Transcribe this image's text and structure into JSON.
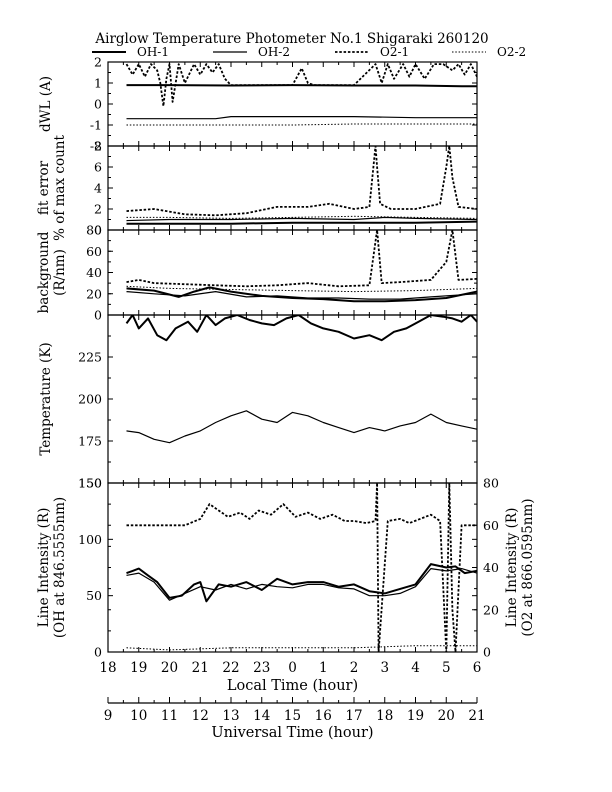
{
  "title": "Airglow Temperature Photometer No.1  Shigaraki  260120",
  "legend": [
    {
      "name": "OH-1",
      "style": "solid-thick"
    },
    {
      "name": "OH-2",
      "style": "solid-thin"
    },
    {
      "name": "O2-1",
      "style": "dotted-thick"
    },
    {
      "name": "O2-2",
      "style": "dotted-thin"
    }
  ],
  "chart_data": [
    {
      "id": "dwl",
      "type": "line",
      "ylabel": "dWL (A)",
      "ylim": [
        -2,
        2
      ],
      "yticks": [
        "2",
        "1",
        "0",
        "-1",
        "-2"
      ],
      "series": [
        {
          "name": "OH-1",
          "x": [
            18.6,
            20,
            22,
            24,
            26,
            28,
            29.5,
            30
          ],
          "y": [
            0.9,
            0.9,
            0.88,
            0.9,
            0.88,
            0.88,
            0.85,
            0.85
          ]
        },
        {
          "name": "OH-2",
          "x": [
            18.6,
            20,
            21.5,
            22,
            24,
            26,
            28,
            30
          ],
          "y": [
            -0.7,
            -0.7,
            -0.7,
            -0.6,
            -0.6,
            -0.6,
            -0.65,
            -0.65
          ]
        },
        {
          "name": "O2-1",
          "x": [
            18.6,
            18.8,
            19,
            19.2,
            19.4,
            19.6,
            19.7,
            19.8,
            19.9,
            20,
            20.1,
            20.3,
            20.5,
            20.8,
            21,
            21.2,
            21.4,
            21.6,
            21.8,
            22,
            23,
            24,
            24.3,
            24.5,
            24.7,
            25,
            26,
            26.7,
            26.9,
            27.1,
            27.3,
            27.6,
            27.8,
            28,
            28.3,
            28.6,
            28.9,
            29.2,
            29.4,
            29.6,
            29.8,
            30
          ],
          "y": [
            1.9,
            1.4,
            1.9,
            1.3,
            1.9,
            1.6,
            1.0,
            -0.1,
            1.2,
            1.9,
            0.1,
            1.9,
            1.0,
            1.9,
            1.4,
            1.9,
            1.5,
            1.9,
            1.2,
            0.9,
            0.9,
            0.9,
            1.7,
            1.0,
            0.9,
            0.9,
            0.9,
            1.9,
            1.0,
            1.9,
            1.2,
            1.9,
            1.3,
            1.9,
            1.2,
            1.9,
            1.9,
            1.6,
            1.9,
            1.4,
            1.9,
            1.3
          ]
        },
        {
          "name": "O2-2",
          "x": [
            18.6,
            20,
            22,
            24,
            26,
            28,
            30
          ],
          "y": [
            -1.0,
            -1.0,
            -1.0,
            -1.0,
            -0.95,
            -0.95,
            -0.95
          ]
        }
      ]
    },
    {
      "id": "fit",
      "type": "line",
      "ylabel": "fit error\n% of max count",
      "ylim": [
        0,
        8
      ],
      "yticks": [
        "8",
        "6",
        "4",
        "2",
        "0"
      ],
      "series": [
        {
          "name": "OH-1",
          "x": [
            18.6,
            20,
            22,
            24,
            26,
            28,
            30
          ],
          "y": [
            0.6,
            0.6,
            0.6,
            0.7,
            0.7,
            0.7,
            0.8
          ]
        },
        {
          "name": "OH-2",
          "x": [
            18.6,
            20,
            22,
            24,
            26,
            27,
            28,
            30
          ],
          "y": [
            0.9,
            1.0,
            1.0,
            1.1,
            1.0,
            1.2,
            1.1,
            1.0
          ]
        },
        {
          "name": "O2-1",
          "x": [
            18.6,
            19.5,
            20.5,
            21.5,
            22.5,
            23.5,
            24.5,
            25.2,
            25.5,
            26,
            26.5,
            26.7,
            26.75,
            26.85,
            27.2,
            28,
            28.8,
            29.0,
            29.1,
            29.2,
            29.4,
            30
          ],
          "y": [
            1.8,
            2.0,
            1.5,
            1.4,
            1.6,
            2.2,
            2.2,
            2.5,
            2.3,
            2.0,
            2.2,
            8.0,
            6.0,
            2.5,
            2.0,
            2.0,
            2.5,
            6.0,
            8.0,
            5.0,
            2.2,
            2.0
          ]
        },
        {
          "name": "O2-2",
          "x": [
            18.6,
            20,
            22,
            24,
            26,
            28,
            30
          ],
          "y": [
            1.2,
            1.2,
            1.1,
            1.2,
            1.3,
            1.2,
            1.1
          ]
        }
      ]
    },
    {
      "id": "bg",
      "type": "line",
      "ylabel": "background\n(R/nm)",
      "ylim": [
        0,
        80
      ],
      "yticks": [
        "80",
        "60",
        "40",
        "20",
        "0"
      ],
      "series": [
        {
          "name": "OH-1",
          "x": [
            18.6,
            19.5,
            20.3,
            20.8,
            21.3,
            22,
            23,
            24,
            25,
            26,
            27,
            28,
            29,
            30
          ],
          "y": [
            25,
            23,
            17,
            22,
            26,
            22,
            18,
            16,
            15,
            13,
            13,
            14,
            16,
            22
          ]
        },
        {
          "name": "OH-2",
          "x": [
            18.6,
            19.5,
            20.5,
            21.5,
            22.5,
            23.5,
            24.5,
            25.5,
            26.5,
            27.5,
            28.5,
            29.5,
            30
          ],
          "y": [
            22,
            20,
            18,
            22,
            17,
            18,
            16,
            16,
            15,
            15,
            17,
            19,
            20
          ]
        },
        {
          "name": "O2-1",
          "x": [
            18.6,
            19,
            19.5,
            20.5,
            21.5,
            22.5,
            23.5,
            24.5,
            25.5,
            26.5,
            26.75,
            26.9,
            27.5,
            28.5,
            29,
            29.2,
            29.4,
            30
          ],
          "y": [
            31,
            33,
            30,
            29,
            28,
            27,
            28,
            30,
            27,
            28,
            80,
            30,
            31,
            33,
            50,
            80,
            33,
            34
          ]
        },
        {
          "name": "O2-2",
          "x": [
            18.6,
            20,
            22,
            24,
            26,
            28,
            30
          ],
          "y": [
            27,
            25,
            24,
            23,
            22,
            23,
            25
          ]
        }
      ]
    },
    {
      "id": "temp",
      "type": "line",
      "ylabel": "Temperature (K)",
      "ylim": [
        150,
        250
      ],
      "yticks": [
        "225",
        "200",
        "175",
        "150"
      ],
      "series": [
        {
          "name": "OH-1",
          "x": [
            18.6,
            18.8,
            19.0,
            19.3,
            19.6,
            19.9,
            20.2,
            20.6,
            20.9,
            21.2,
            21.5,
            21.8,
            22.2,
            22.6,
            23.0,
            23.4,
            23.8,
            24.2,
            24.6,
            25.0,
            25.5,
            26.0,
            26.5,
            26.9,
            27.3,
            27.7,
            28.1,
            28.5,
            28.9,
            29.2,
            29.5,
            29.8,
            30
          ],
          "y": [
            245,
            250,
            242,
            248,
            238,
            235,
            242,
            246,
            240,
            250,
            244,
            248,
            250,
            247,
            245,
            244,
            248,
            250,
            245,
            242,
            240,
            236,
            238,
            235,
            240,
            242,
            246,
            250,
            249,
            248,
            246,
            250,
            246
          ]
        },
        {
          "name": "OH-2",
          "x": [
            18.6,
            19.0,
            19.5,
            20.0,
            20.5,
            21.0,
            21.5,
            22.0,
            22.5,
            23.0,
            23.5,
            24.0,
            24.5,
            25.0,
            25.5,
            26.0,
            26.5,
            27.0,
            27.5,
            28.0,
            28.5,
            29.0,
            29.5,
            30
          ],
          "y": [
            181,
            180,
            176,
            174,
            178,
            181,
            186,
            190,
            193,
            188,
            186,
            192,
            190,
            186,
            183,
            180,
            183,
            181,
            184,
            186,
            191,
            186,
            184,
            182
          ]
        }
      ]
    },
    {
      "id": "intensity",
      "type": "line",
      "ylabel": "Line Intensity (R)\n(OH at 846.5555nm)",
      "ylabel_right": "Line Intensity (R)\n(O2 at 866.0595nm)",
      "ylim": [
        0,
        150
      ],
      "ylim_right": [
        0,
        80
      ],
      "yticks": [
        "150",
        "100",
        "50",
        "0"
      ],
      "yticks_right": [
        "80",
        "60",
        "40",
        "20",
        "0"
      ],
      "series": [
        {
          "name": "OH-1",
          "x": [
            18.6,
            18.8,
            19.0,
            19.3,
            19.6,
            20.0,
            20.4,
            20.8,
            21.0,
            21.2,
            21.6,
            22.0,
            22.5,
            23.0,
            23.5,
            24.0,
            24.5,
            25.0,
            25.5,
            26.0,
            26.5,
            27.0,
            27.5,
            28.0,
            28.5,
            29.0,
            29.3,
            29.6,
            30
          ],
          "y": [
            70,
            72,
            74,
            68,
            62,
            48,
            50,
            60,
            62,
            45,
            60,
            58,
            62,
            55,
            65,
            60,
            62,
            62,
            58,
            60,
            54,
            52,
            56,
            60,
            78,
            75,
            76,
            70,
            72
          ]
        },
        {
          "name": "OH-2",
          "x": [
            18.6,
            19.0,
            19.5,
            20.0,
            20.5,
            21.0,
            21.5,
            22.0,
            22.5,
            23.0,
            23.5,
            24.0,
            24.5,
            25.0,
            25.5,
            26.0,
            26.5,
            27.0,
            27.5,
            28.0,
            28.5,
            29.0,
            29.5,
            30
          ],
          "y": [
            68,
            70,
            62,
            46,
            52,
            58,
            55,
            60,
            56,
            60,
            58,
            57,
            60,
            60,
            57,
            56,
            50,
            50,
            52,
            58,
            74,
            72,
            74,
            70
          ]
        },
        {
          "name": "O2-1",
          "x": [
            18.6,
            20.5,
            21.0,
            21.3,
            21.6,
            21.9,
            22.3,
            22.6,
            22.9,
            23.3,
            23.7,
            24.1,
            24.5,
            24.9,
            25.3,
            25.7,
            26.0,
            26.4,
            26.7,
            26.75,
            26.8,
            27.1,
            27.5,
            27.8,
            28.5,
            28.8,
            29.0,
            29.1,
            29.2,
            29.3,
            29.5,
            30
          ],
          "y": [
            60,
            60,
            63,
            70,
            67,
            64,
            66,
            63,
            67,
            65,
            70,
            64,
            66,
            63,
            65,
            62,
            62,
            61,
            62,
            80,
            0,
            62,
            63,
            61,
            65,
            62,
            0,
            80,
            20,
            0,
            60,
            60
          ]
        },
        {
          "name": "O2-2",
          "x": [
            18.6,
            20,
            22,
            24,
            26,
            28,
            29.5,
            30
          ],
          "y": [
            2,
            1,
            2,
            2,
            2,
            3,
            3,
            3
          ]
        }
      ]
    }
  ],
  "x_axis_local": {
    "label": "Local Time (hour)",
    "range": [
      18,
      30
    ],
    "ticks": [
      "18",
      "19",
      "20",
      "21",
      "22",
      "23",
      "0",
      "1",
      "2",
      "3",
      "4",
      "5",
      "6"
    ]
  },
  "x_axis_ut": {
    "label": "Universal Time (hour)",
    "range": [
      9,
      21
    ],
    "ticks": [
      "9",
      "10",
      "11",
      "12",
      "13",
      "14",
      "15",
      "16",
      "17",
      "18",
      "19",
      "20",
      "21"
    ]
  }
}
